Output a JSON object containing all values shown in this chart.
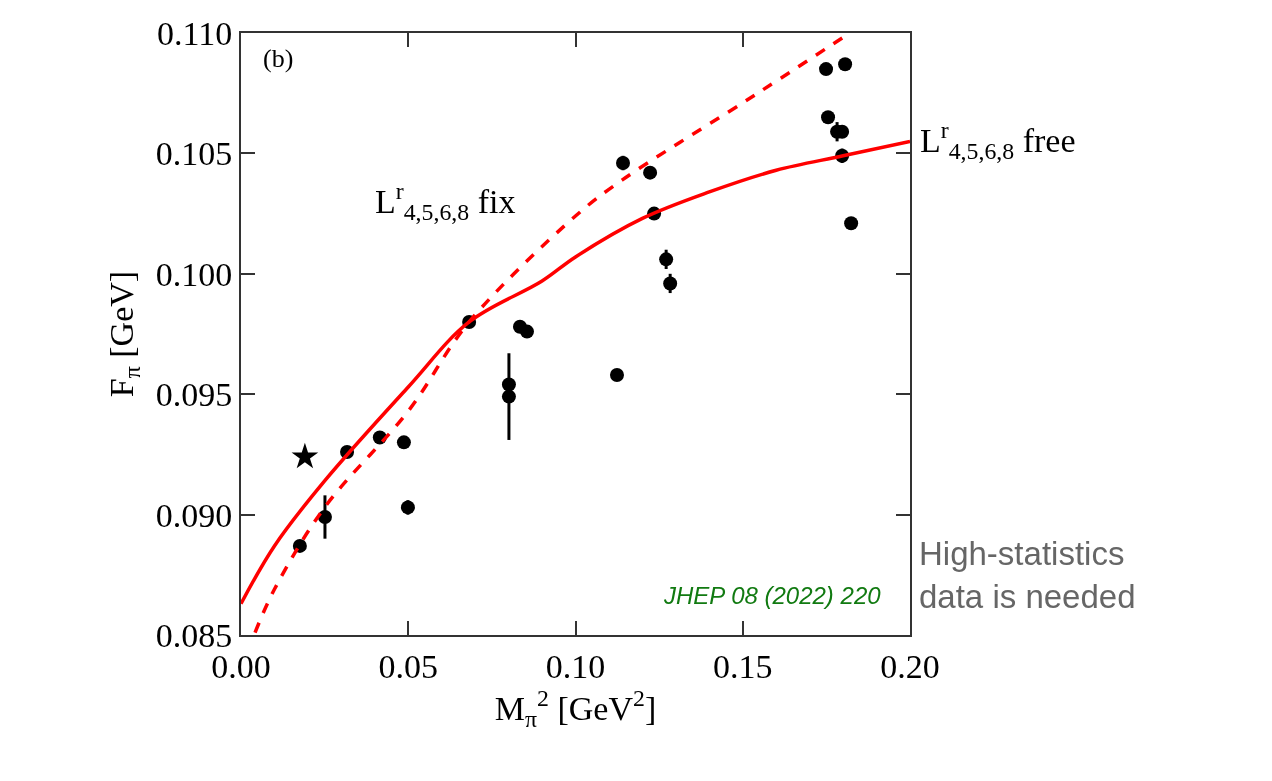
{
  "chart_data": {
    "type": "scatter",
    "xlabel": "M$_{π}$$^{2}$ [GeV$^{2}$]",
    "ylabel": "F$_{π}$ [GeV]",
    "xlim": [
      0,
      0.2
    ],
    "xticks": [
      {
        "value": 0,
        "label": "0.00"
      },
      0.05,
      {
        "value": 0.1,
        "label": "0.10"
      },
      0.15,
      {
        "value": 0.2,
        "label": "0.20"
      }
    ],
    "ylim": [
      0.085,
      0.11
    ],
    "yticks": [
      0.085,
      {
        "value": 0.09,
        "label": "0.090"
      },
      0.095,
      {
        "value": 0.1,
        "label": "0.100"
      },
      0.105,
      {
        "value": 0.11,
        "label": "0.110"
      }
    ],
    "grid": false,
    "series": [
      {
        "marker": "circle",
        "color": "#000000",
        "x": [
          0.0176,
          0.0251,
          0.0317,
          0.0415,
          0.0487,
          0.0499,
          0.0682,
          0.0801,
          0.0801,
          0.0834,
          0.0855,
          0.1124,
          0.1142,
          0.1223,
          0.1235,
          0.1271,
          0.1283,
          0.1749,
          0.1806,
          0.1755,
          0.1782,
          0.1797,
          0.1797,
          0.1824
        ],
        "values": [
          0.0887,
          0.0899,
          0.0926,
          0.0932,
          0.093,
          0.0903,
          0.098,
          0.0954,
          0.0949,
          0.0978,
          0.0976,
          0.0958,
          0.1046,
          0.1042,
          0.1025,
          0.1006,
          0.0996,
          0.1085,
          0.1087,
          0.1065,
          0.1059,
          0.1059,
          0.1049,
          0.1021
        ],
        "errors": [
          0.0002,
          0.0009,
          null,
          null,
          0.0002,
          0.0003,
          null,
          null,
          0.0018,
          null,
          null,
          0.0002,
          0.0003,
          0.0002,
          null,
          0.0004,
          0.0004,
          null,
          0.0002,
          0.0002,
          0.0004,
          null,
          0.0003,
          null
        ]
      },
      {
        "marker": "star",
        "color": "#000000",
        "x": [
          0.0191
        ],
        "values": [
          0.0924
        ]
      },
      {
        "type": "line",
        "marker": "none",
        "line_style": "solid",
        "color": "#ff0000",
        "x": [
          0,
          0.01,
          0.025,
          0.05,
          0.0682,
          0.09,
          0.1,
          0.12,
          0.14,
          0.16,
          0.18,
          0.2
        ],
        "values": [
          0.0863,
          0.0887,
          0.0914,
          0.0953,
          0.098,
          0.0997,
          0.1007,
          0.1023,
          0.1034,
          0.1043,
          0.1049,
          0.1055
        ]
      },
      {
        "type": "line",
        "marker": "none",
        "line_style": "dashed",
        "color": "#ff0000",
        "x": [
          0.0042,
          0.01,
          0.025,
          0.05,
          0.0682,
          0.1,
          0.114,
          0.15,
          0.16,
          0.182
        ],
        "values": [
          0.0851,
          0.0869,
          0.0903,
          0.0943,
          0.098,
          0.1024,
          0.1039,
          0.1071,
          0.108,
          0.11
        ]
      }
    ],
    "annotations": [
      "(b)",
      "L$^{r}$$_{4,5,6,8}$ fix",
      "L$^{r}$$_{4,5,6,8}$ free",
      "JHEP 08 (2022) 220",
      "High-statistics\ndata is needed"
    ]
  }
}
